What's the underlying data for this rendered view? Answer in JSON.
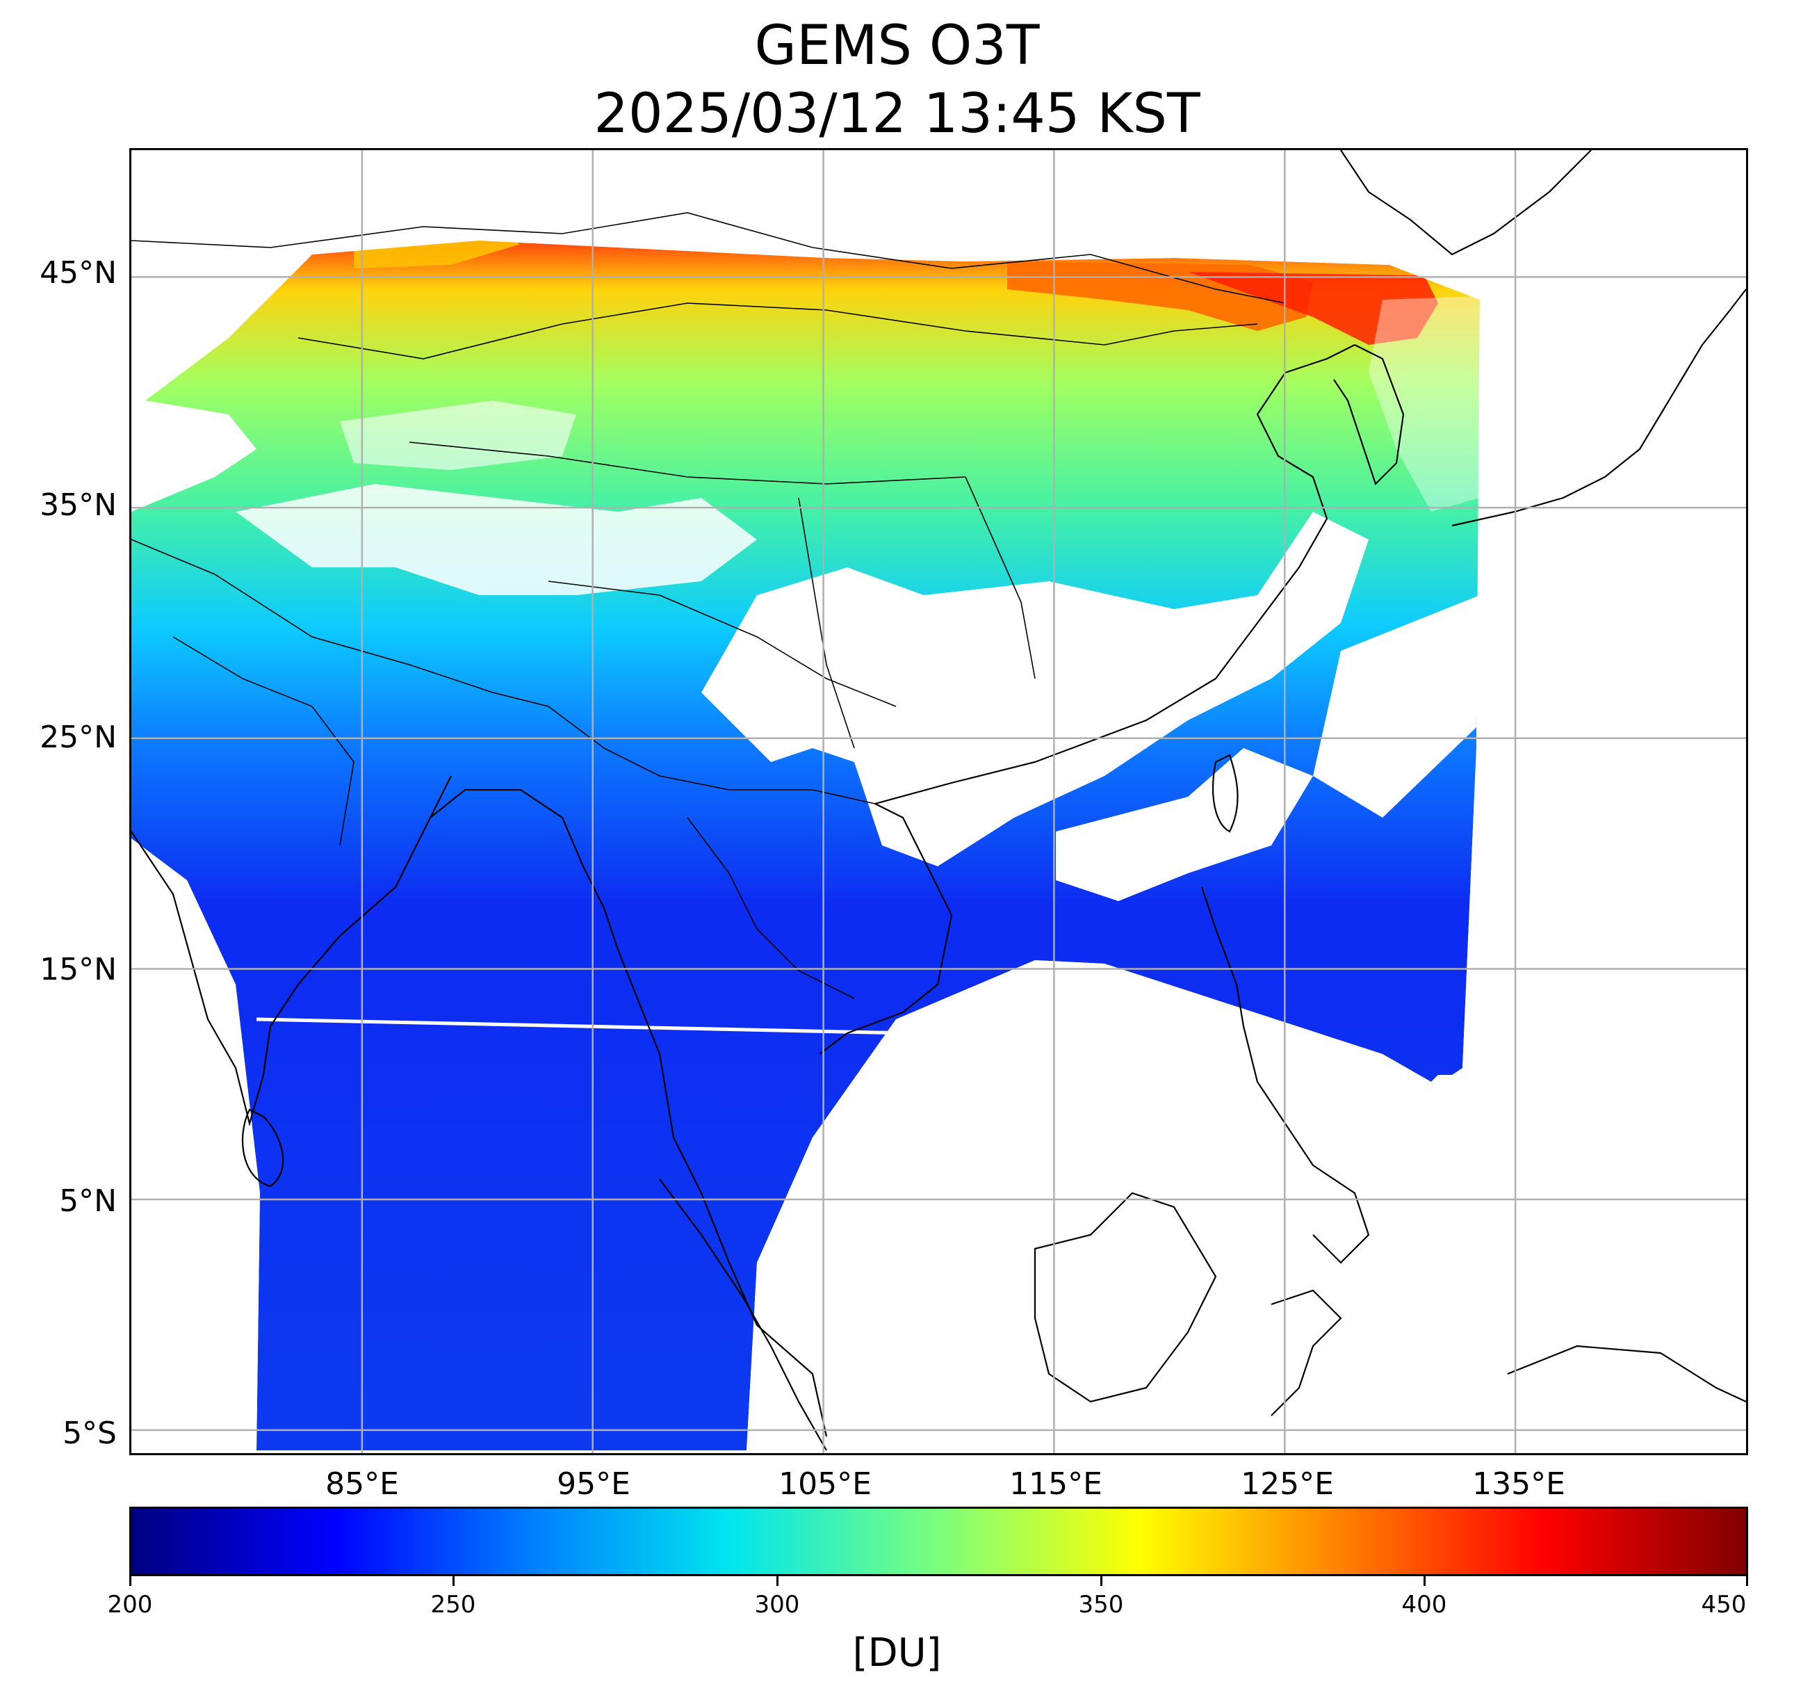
{
  "title": {
    "line1": "GEMS O3T",
    "line2": "2025/03/12 13:45 KST"
  },
  "map": {
    "lat_labels": [
      "45°N",
      "35°N",
      "25°N",
      "15°N",
      "5°N",
      "5°S"
    ],
    "lon_labels": [
      "85°E",
      "95°E",
      "105°E",
      "115°E",
      "125°E",
      "135°E"
    ],
    "extent": {
      "lon_min": 75,
      "lon_max": 145,
      "lat_min": -6,
      "lat_max": 50.5
    },
    "grid": true
  },
  "colorbar": {
    "colormap": "jet",
    "min": 200,
    "max": 450,
    "ticks": [
      "200",
      "250",
      "300",
      "350",
      "400",
      "450"
    ],
    "unit": "[DU]"
  },
  "colors": {
    "low": "#0000ff",
    "mid": "#7cff7c",
    "high": "#ff0000",
    "grid": "#b0b0b0",
    "coastline": "#000000"
  }
}
